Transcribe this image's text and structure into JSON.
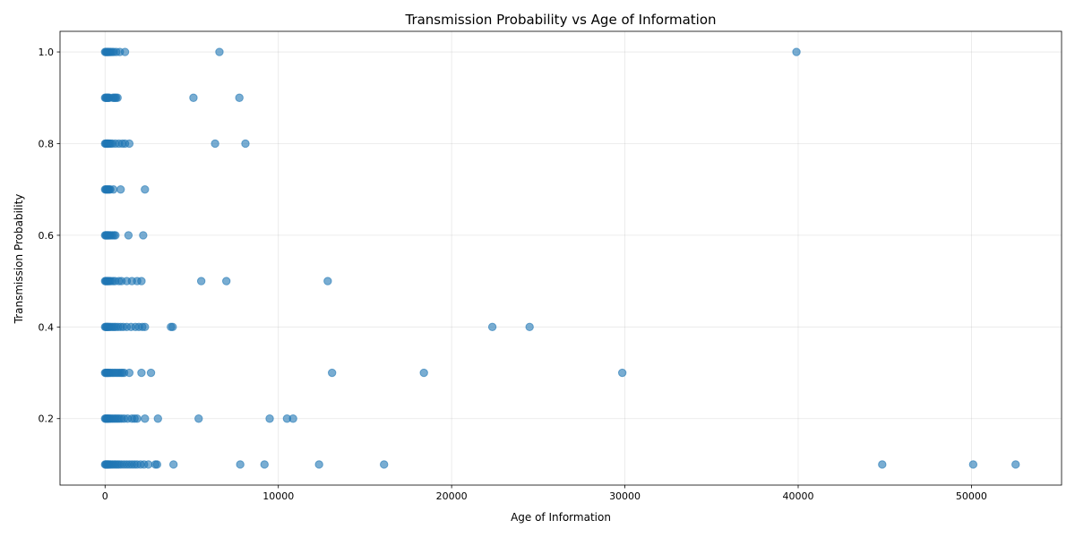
{
  "chart_data": {
    "type": "scatter",
    "title": "Transmission Probability vs Age of Information",
    "xlabel": "Age of Information",
    "ylabel": "Transmission Probability",
    "xlim": [
      -2600,
      55200
    ],
    "ylim": [
      0.055,
      1.045
    ],
    "xticks": [
      0,
      10000,
      20000,
      30000,
      40000,
      50000
    ],
    "xtick_labels": [
      "0",
      "10000",
      "20000",
      "30000",
      "40000",
      "50000"
    ],
    "yticks": [
      0.2,
      0.4,
      0.6,
      0.8,
      1.0
    ],
    "ytick_labels": [
      "0.2",
      "0.4",
      "0.6",
      "0.8",
      "1.0"
    ],
    "grid": true,
    "color": "#1f77b4",
    "points": [
      {
        "x": 0,
        "y": 1.0
      },
      {
        "x": 40,
        "y": 1.0
      },
      {
        "x": 80,
        "y": 1.0
      },
      {
        "x": 120,
        "y": 1.0
      },
      {
        "x": 160,
        "y": 1.0
      },
      {
        "x": 200,
        "y": 1.0
      },
      {
        "x": 260,
        "y": 1.0
      },
      {
        "x": 320,
        "y": 1.0
      },
      {
        "x": 400,
        "y": 1.0
      },
      {
        "x": 500,
        "y": 1.0
      },
      {
        "x": 650,
        "y": 1.0
      },
      {
        "x": 850,
        "y": 1.0
      },
      {
        "x": 1150,
        "y": 1.0
      },
      {
        "x": 6600,
        "y": 1.0
      },
      {
        "x": 39900,
        "y": 1.0
      },
      {
        "x": 0,
        "y": 0.9
      },
      {
        "x": 40,
        "y": 0.9
      },
      {
        "x": 80,
        "y": 0.9
      },
      {
        "x": 120,
        "y": 0.9
      },
      {
        "x": 160,
        "y": 0.9
      },
      {
        "x": 200,
        "y": 0.9
      },
      {
        "x": 250,
        "y": 0.9
      },
      {
        "x": 450,
        "y": 0.9
      },
      {
        "x": 520,
        "y": 0.9
      },
      {
        "x": 580,
        "y": 0.9
      },
      {
        "x": 640,
        "y": 0.9
      },
      {
        "x": 720,
        "y": 0.9
      },
      {
        "x": 5100,
        "y": 0.9
      },
      {
        "x": 7750,
        "y": 0.9
      },
      {
        "x": 0,
        "y": 0.8
      },
      {
        "x": 40,
        "y": 0.8
      },
      {
        "x": 80,
        "y": 0.8
      },
      {
        "x": 120,
        "y": 0.8
      },
      {
        "x": 160,
        "y": 0.8
      },
      {
        "x": 200,
        "y": 0.8
      },
      {
        "x": 260,
        "y": 0.8
      },
      {
        "x": 330,
        "y": 0.8
      },
      {
        "x": 420,
        "y": 0.8
      },
      {
        "x": 600,
        "y": 0.8
      },
      {
        "x": 800,
        "y": 0.8
      },
      {
        "x": 1000,
        "y": 0.8
      },
      {
        "x": 1150,
        "y": 0.8
      },
      {
        "x": 1400,
        "y": 0.8
      },
      {
        "x": 6350,
        "y": 0.8
      },
      {
        "x": 8100,
        "y": 0.8
      },
      {
        "x": 0,
        "y": 0.7
      },
      {
        "x": 40,
        "y": 0.7
      },
      {
        "x": 80,
        "y": 0.7
      },
      {
        "x": 120,
        "y": 0.7
      },
      {
        "x": 160,
        "y": 0.7
      },
      {
        "x": 200,
        "y": 0.7
      },
      {
        "x": 250,
        "y": 0.7
      },
      {
        "x": 300,
        "y": 0.7
      },
      {
        "x": 480,
        "y": 0.7
      },
      {
        "x": 900,
        "y": 0.7
      },
      {
        "x": 2300,
        "y": 0.7
      },
      {
        "x": 0,
        "y": 0.6
      },
      {
        "x": 40,
        "y": 0.6
      },
      {
        "x": 80,
        "y": 0.6
      },
      {
        "x": 120,
        "y": 0.6
      },
      {
        "x": 160,
        "y": 0.6
      },
      {
        "x": 200,
        "y": 0.6
      },
      {
        "x": 260,
        "y": 0.6
      },
      {
        "x": 330,
        "y": 0.6
      },
      {
        "x": 420,
        "y": 0.6
      },
      {
        "x": 520,
        "y": 0.6
      },
      {
        "x": 600,
        "y": 0.6
      },
      {
        "x": 1350,
        "y": 0.6
      },
      {
        "x": 2200,
        "y": 0.6
      },
      {
        "x": 0,
        "y": 0.5
      },
      {
        "x": 40,
        "y": 0.5
      },
      {
        "x": 80,
        "y": 0.5
      },
      {
        "x": 120,
        "y": 0.5
      },
      {
        "x": 160,
        "y": 0.5
      },
      {
        "x": 200,
        "y": 0.5
      },
      {
        "x": 260,
        "y": 0.5
      },
      {
        "x": 330,
        "y": 0.5
      },
      {
        "x": 450,
        "y": 0.5
      },
      {
        "x": 580,
        "y": 0.5
      },
      {
        "x": 800,
        "y": 0.5
      },
      {
        "x": 950,
        "y": 0.5
      },
      {
        "x": 1250,
        "y": 0.5
      },
      {
        "x": 1550,
        "y": 0.5
      },
      {
        "x": 1850,
        "y": 0.5
      },
      {
        "x": 2100,
        "y": 0.5
      },
      {
        "x": 5550,
        "y": 0.5
      },
      {
        "x": 7000,
        "y": 0.5
      },
      {
        "x": 12850,
        "y": 0.5
      },
      {
        "x": 0,
        "y": 0.4
      },
      {
        "x": 40,
        "y": 0.4
      },
      {
        "x": 80,
        "y": 0.4
      },
      {
        "x": 120,
        "y": 0.4
      },
      {
        "x": 160,
        "y": 0.4
      },
      {
        "x": 200,
        "y": 0.4
      },
      {
        "x": 260,
        "y": 0.4
      },
      {
        "x": 330,
        "y": 0.4
      },
      {
        "x": 420,
        "y": 0.4
      },
      {
        "x": 520,
        "y": 0.4
      },
      {
        "x": 620,
        "y": 0.4
      },
      {
        "x": 750,
        "y": 0.4
      },
      {
        "x": 900,
        "y": 0.4
      },
      {
        "x": 1050,
        "y": 0.4
      },
      {
        "x": 1250,
        "y": 0.4
      },
      {
        "x": 1500,
        "y": 0.4
      },
      {
        "x": 1750,
        "y": 0.4
      },
      {
        "x": 1950,
        "y": 0.4
      },
      {
        "x": 2150,
        "y": 0.4
      },
      {
        "x": 2300,
        "y": 0.4
      },
      {
        "x": 3800,
        "y": 0.4
      },
      {
        "x": 3900,
        "y": 0.4
      },
      {
        "x": 22350,
        "y": 0.4
      },
      {
        "x": 24500,
        "y": 0.4
      },
      {
        "x": 0,
        "y": 0.3
      },
      {
        "x": 40,
        "y": 0.3
      },
      {
        "x": 80,
        "y": 0.3
      },
      {
        "x": 120,
        "y": 0.3
      },
      {
        "x": 160,
        "y": 0.3
      },
      {
        "x": 200,
        "y": 0.3
      },
      {
        "x": 260,
        "y": 0.3
      },
      {
        "x": 330,
        "y": 0.3
      },
      {
        "x": 420,
        "y": 0.3
      },
      {
        "x": 520,
        "y": 0.3
      },
      {
        "x": 620,
        "y": 0.3
      },
      {
        "x": 720,
        "y": 0.3
      },
      {
        "x": 820,
        "y": 0.3
      },
      {
        "x": 920,
        "y": 0.3
      },
      {
        "x": 1000,
        "y": 0.3
      },
      {
        "x": 1100,
        "y": 0.3
      },
      {
        "x": 1400,
        "y": 0.3
      },
      {
        "x": 2100,
        "y": 0.3
      },
      {
        "x": 2650,
        "y": 0.3
      },
      {
        "x": 13100,
        "y": 0.3
      },
      {
        "x": 18400,
        "y": 0.3
      },
      {
        "x": 29850,
        "y": 0.3
      },
      {
        "x": 0,
        "y": 0.2
      },
      {
        "x": 40,
        "y": 0.2
      },
      {
        "x": 80,
        "y": 0.2
      },
      {
        "x": 120,
        "y": 0.2
      },
      {
        "x": 160,
        "y": 0.2
      },
      {
        "x": 200,
        "y": 0.2
      },
      {
        "x": 260,
        "y": 0.2
      },
      {
        "x": 330,
        "y": 0.2
      },
      {
        "x": 420,
        "y": 0.2
      },
      {
        "x": 520,
        "y": 0.2
      },
      {
        "x": 620,
        "y": 0.2
      },
      {
        "x": 720,
        "y": 0.2
      },
      {
        "x": 820,
        "y": 0.2
      },
      {
        "x": 950,
        "y": 0.2
      },
      {
        "x": 1100,
        "y": 0.2
      },
      {
        "x": 1300,
        "y": 0.2
      },
      {
        "x": 1550,
        "y": 0.2
      },
      {
        "x": 1700,
        "y": 0.2
      },
      {
        "x": 1850,
        "y": 0.2
      },
      {
        "x": 2300,
        "y": 0.2
      },
      {
        "x": 3050,
        "y": 0.2
      },
      {
        "x": 5400,
        "y": 0.2
      },
      {
        "x": 9500,
        "y": 0.2
      },
      {
        "x": 10500,
        "y": 0.2
      },
      {
        "x": 10850,
        "y": 0.2
      },
      {
        "x": 0,
        "y": 0.1
      },
      {
        "x": 40,
        "y": 0.1
      },
      {
        "x": 80,
        "y": 0.1
      },
      {
        "x": 120,
        "y": 0.1
      },
      {
        "x": 160,
        "y": 0.1
      },
      {
        "x": 200,
        "y": 0.1
      },
      {
        "x": 260,
        "y": 0.1
      },
      {
        "x": 330,
        "y": 0.1
      },
      {
        "x": 420,
        "y": 0.1
      },
      {
        "x": 520,
        "y": 0.1
      },
      {
        "x": 620,
        "y": 0.1
      },
      {
        "x": 720,
        "y": 0.1
      },
      {
        "x": 820,
        "y": 0.1
      },
      {
        "x": 950,
        "y": 0.1
      },
      {
        "x": 1100,
        "y": 0.1
      },
      {
        "x": 1250,
        "y": 0.1
      },
      {
        "x": 1400,
        "y": 0.1
      },
      {
        "x": 1550,
        "y": 0.1
      },
      {
        "x": 1700,
        "y": 0.1
      },
      {
        "x": 1850,
        "y": 0.1
      },
      {
        "x": 2050,
        "y": 0.1
      },
      {
        "x": 2250,
        "y": 0.1
      },
      {
        "x": 2500,
        "y": 0.1
      },
      {
        "x": 2900,
        "y": 0.1
      },
      {
        "x": 3000,
        "y": 0.1
      },
      {
        "x": 3950,
        "y": 0.1
      },
      {
        "x": 7800,
        "y": 0.1
      },
      {
        "x": 9200,
        "y": 0.1
      },
      {
        "x": 12350,
        "y": 0.1
      },
      {
        "x": 16100,
        "y": 0.1
      },
      {
        "x": 44850,
        "y": 0.1
      },
      {
        "x": 50100,
        "y": 0.1
      },
      {
        "x": 52550,
        "y": 0.1
      }
    ]
  }
}
